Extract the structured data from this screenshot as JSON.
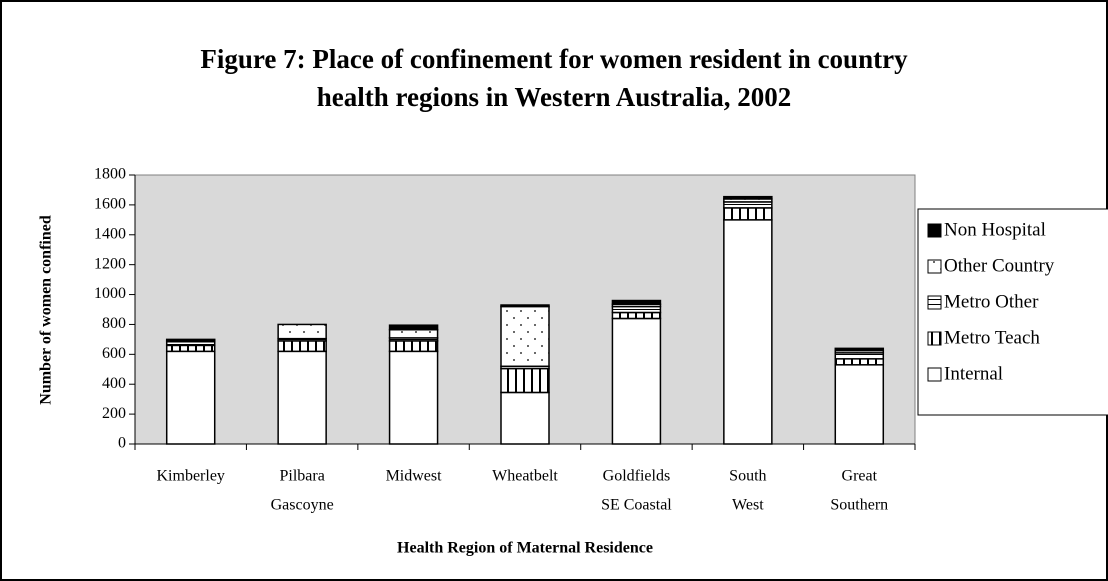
{
  "chart_data": {
    "type": "stacked_bar",
    "title": [
      "Figure 7: Place of confinement for women resident in country",
      "health regions in Western Australia, 2002"
    ],
    "y_label": "Number of women confined",
    "x_label": "Health Region of Maternal Residence",
    "categories": [
      [
        "Kimberley"
      ],
      [
        "Pilbara",
        "Gascoyne"
      ],
      [
        "Midwest"
      ],
      [
        "Wheatbelt"
      ],
      [
        "Goldfields",
        "SE Coastal"
      ],
      [
        "South",
        "West"
      ],
      [
        "Great",
        "Southern"
      ]
    ],
    "series": [
      {
        "name": "Internal",
        "color": "#ffffff",
        "values": [
          620,
          620,
          620,
          345,
          840,
          1500,
          530
        ]
      },
      {
        "name": "Metro Teach",
        "color": "#ffffff",
        "values": [
          40,
          70,
          70,
          160,
          40,
          80,
          40
        ]
      },
      {
        "name": "Metro Other",
        "color": "#ffffff",
        "values": [
          25,
          15,
          20,
          15,
          40,
          40,
          40
        ]
      },
      {
        "name": "Other Country",
        "color": "#ffffff",
        "values": [
          10,
          95,
          55,
          400,
          15,
          20,
          15
        ]
      },
      {
        "name": "Non Hospital",
        "color": "#000000",
        "values": [
          5,
          0,
          30,
          10,
          25,
          15,
          15
        ]
      }
    ],
    "ylim": [
      0,
      1800
    ],
    "yticks": [
      0,
      200,
      400,
      600,
      800,
      1000,
      1200,
      1400,
      1600,
      1800
    ],
    "plot_background": "#d9d9d9"
  }
}
